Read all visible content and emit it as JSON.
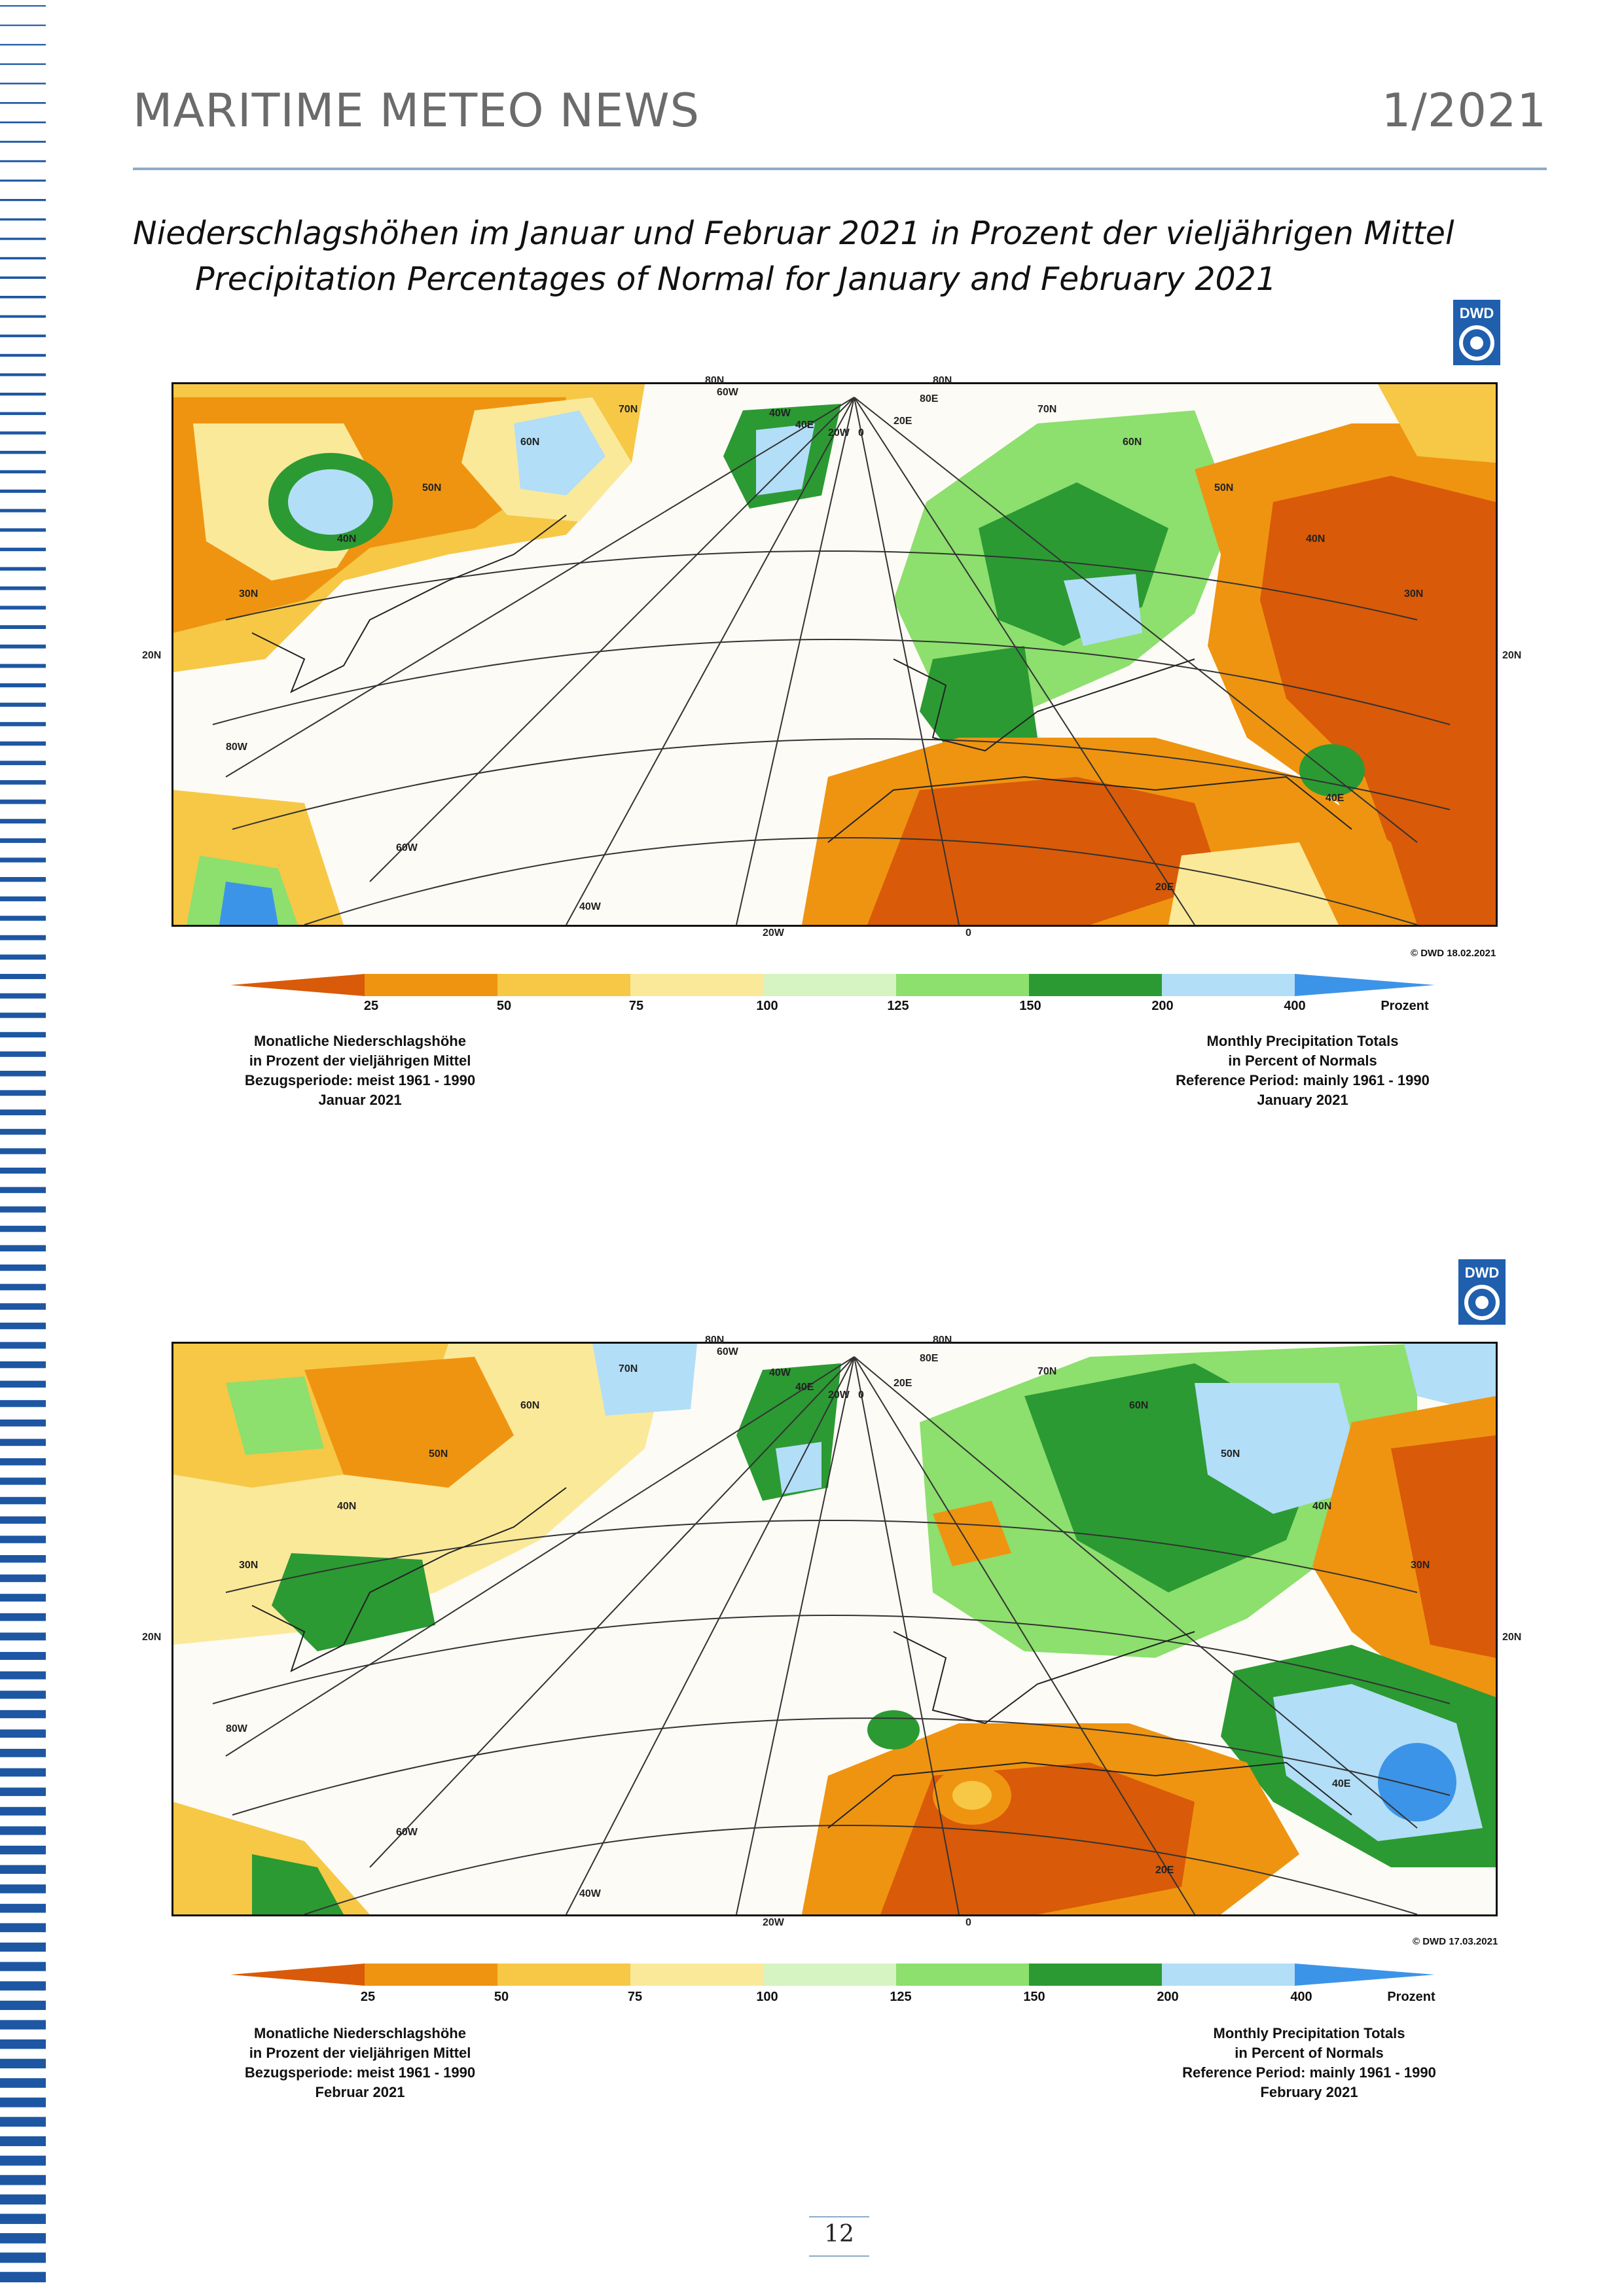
{
  "header": {
    "title": "MARITIME METEO NEWS",
    "issue": "1/2021"
  },
  "titles": {
    "german": "Niederschlagshöhen im Januar und Februar 2021 in Prozent der vieljährigen Mittel",
    "english": "Precipitation Percentages of Normal for January and February 2021"
  },
  "logo_text": "DWD",
  "colors": {
    "c0": "#d95a08",
    "c1": "#ef9410",
    "c2": "#f6c846",
    "c3": "#fbe99a",
    "c4": "#d6f3c2",
    "c5": "#8ddf6e",
    "c6": "#2b9a33",
    "c7": "#b2def7",
    "c8": "#3c94e8",
    "land_light": "#fdfbf6"
  },
  "legend": {
    "ticks": [
      "25",
      "50",
      "75",
      "100",
      "125",
      "150",
      "200",
      "400"
    ],
    "unit": "Prozent"
  },
  "maps": [
    {
      "copyright": "© DWD 18.02.2021",
      "labels": {
        "lat80a": "80N",
        "lat80b": "80N",
        "lat70": "70N",
        "lat60w": "60N",
        "lat60e": "60N",
        "lat50w": "50N",
        "lat50e": "50N",
        "lat40w": "40N",
        "lat40e": "40N",
        "lat30w": "30N",
        "lat30e": "30N",
        "lat20l": "20N",
        "lat20r": "20N",
        "lon80": "80W",
        "lon60": "60W",
        "lon40": "40W",
        "lon20": "20W",
        "lon0": "0",
        "lon20e": "20E",
        "lon40e": "40E",
        "topa": "60W",
        "topb": "40W",
        "topc": "20W",
        "topd": "0",
        "tope": "20E",
        "topf": "40E",
        "topg": "70N",
        "toph": "80E"
      },
      "caption_de": [
        "Monatliche Niederschlagshöhe",
        "in Prozent der vieljährigen Mittel",
        "Bezugsperiode: meist 1961 - 1990",
        "Januar 2021"
      ],
      "caption_en": [
        "Monthly Precipitation Totals",
        "in Percent of Normals",
        "Reference Period: mainly 1961 - 1990",
        "January 2021"
      ]
    },
    {
      "copyright": "© DWD 17.03.2021",
      "labels": {
        "lat80a": "80N",
        "lat80b": "80N",
        "lat70": "70N",
        "lat60w": "60N",
        "lat60e": "60N",
        "lat50w": "50N",
        "lat50e": "50N",
        "lat40w": "40N",
        "lat40e": "40N",
        "lat30w": "30N",
        "lat30e": "30N",
        "lat20l": "20N",
        "lat20r": "20N",
        "lon80": "80W",
        "lon60": "60W",
        "lon40": "40W",
        "lon20": "20W",
        "lon0": "0",
        "lon20e": "20E",
        "lon40e": "40E",
        "topa": "60W",
        "topb": "40W",
        "topc": "20W",
        "topd": "0",
        "tope": "20E",
        "topf": "40E",
        "topg": "70N",
        "toph": "80E"
      },
      "caption_de": [
        "Monatliche Niederschlagshöhe",
        "in Prozent der vieljährigen Mittel",
        "Bezugsperiode: meist 1961 - 1990",
        "Februar 2021"
      ],
      "caption_en": [
        "Monthly Precipitation Totals",
        "in Percent of Normals",
        "Reference Period: mainly 1961 - 1990",
        "February 2021"
      ]
    }
  ],
  "page_number": "12"
}
